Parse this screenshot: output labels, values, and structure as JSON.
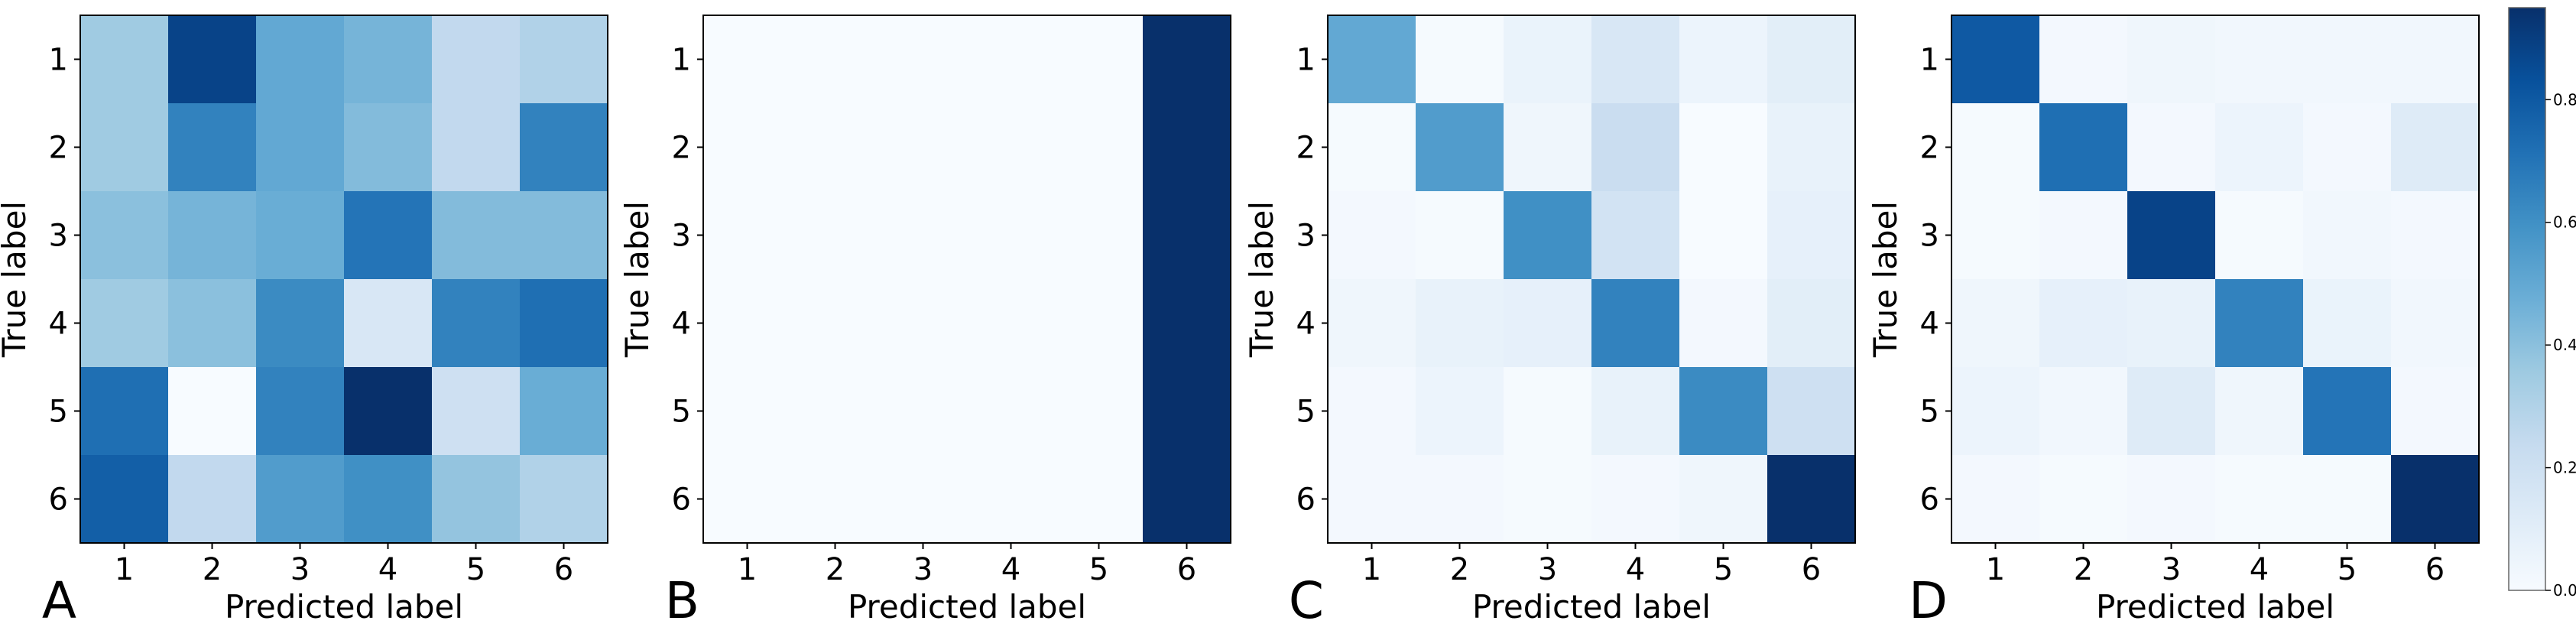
{
  "colormap": {
    "name": "Blues",
    "stops": [
      "#f7fbff",
      "#deebf7",
      "#c6dbef",
      "#9ecae1",
      "#6baed6",
      "#4292c6",
      "#2171b5",
      "#08519c",
      "#08306b"
    ]
  },
  "colorbar": {
    "range": [
      0.0,
      0.95
    ],
    "tick_values": [
      0.0,
      0.2,
      0.4,
      0.6,
      0.8
    ],
    "tick_labels": [
      "0.0",
      "0.2",
      "0.4",
      "0.6",
      "0.8"
    ]
  },
  "chart_data": [
    {
      "type": "heatmap",
      "panel_label": "A",
      "xlabel": "Predicted label",
      "ylabel": "True label",
      "x_categories": [
        "1",
        "2",
        "3",
        "4",
        "5",
        "6"
      ],
      "y_categories": [
        "1",
        "2",
        "3",
        "4",
        "5",
        "6"
      ],
      "values": [
        [
          0.35,
          0.88,
          0.5,
          0.45,
          0.25,
          0.3
        ],
        [
          0.35,
          0.65,
          0.5,
          0.42,
          0.25,
          0.65
        ],
        [
          0.4,
          0.45,
          0.48,
          0.7,
          0.42,
          0.42
        ],
        [
          0.35,
          0.4,
          0.62,
          0.15,
          0.65,
          0.72
        ],
        [
          0.72,
          0.0,
          0.65,
          0.95,
          0.2,
          0.48
        ],
        [
          0.78,
          0.25,
          0.55,
          0.6,
          0.38,
          0.3
        ]
      ]
    },
    {
      "type": "heatmap",
      "panel_label": "B",
      "xlabel": "Predicted label",
      "ylabel": "True label",
      "x_categories": [
        "1",
        "2",
        "3",
        "4",
        "5",
        "6"
      ],
      "y_categories": [
        "1",
        "2",
        "3",
        "4",
        "5",
        "6"
      ],
      "values": [
        [
          0.0,
          0.0,
          0.0,
          0.0,
          0.0,
          0.95
        ],
        [
          0.0,
          0.0,
          0.0,
          0.0,
          0.0,
          0.95
        ],
        [
          0.0,
          0.0,
          0.0,
          0.0,
          0.0,
          0.95
        ],
        [
          0.0,
          0.0,
          0.0,
          0.0,
          0.0,
          0.95
        ],
        [
          0.0,
          0.0,
          0.0,
          0.0,
          0.0,
          0.95
        ],
        [
          0.0,
          0.0,
          0.0,
          0.0,
          0.0,
          0.95
        ]
      ]
    },
    {
      "type": "heatmap",
      "panel_label": "C",
      "xlabel": "Predicted label",
      "ylabel": "True label",
      "x_categories": [
        "1",
        "2",
        "3",
        "4",
        "5",
        "6"
      ],
      "y_categories": [
        "1",
        "2",
        "3",
        "4",
        "5",
        "6"
      ],
      "values": [
        [
          0.5,
          0.01,
          0.06,
          0.15,
          0.05,
          0.1
        ],
        [
          0.01,
          0.55,
          0.04,
          0.22,
          0.0,
          0.07
        ],
        [
          0.02,
          0.01,
          0.6,
          0.18,
          0.0,
          0.08
        ],
        [
          0.04,
          0.07,
          0.08,
          0.65,
          0.02,
          0.1
        ],
        [
          0.02,
          0.05,
          0.01,
          0.07,
          0.62,
          0.2
        ],
        [
          0.02,
          0.02,
          0.01,
          0.02,
          0.04,
          0.95
        ]
      ]
    },
    {
      "type": "heatmap",
      "panel_label": "D",
      "xlabel": "Predicted label",
      "ylabel": "True label",
      "x_categories": [
        "1",
        "2",
        "3",
        "4",
        "5",
        "6"
      ],
      "y_categories": [
        "1",
        "2",
        "3",
        "4",
        "5",
        "6"
      ],
      "values": [
        [
          0.8,
          0.02,
          0.04,
          0.03,
          0.03,
          0.03
        ],
        [
          0.01,
          0.72,
          0.02,
          0.05,
          0.02,
          0.12
        ],
        [
          0.01,
          0.02,
          0.88,
          0.01,
          0.03,
          0.02
        ],
        [
          0.04,
          0.08,
          0.07,
          0.65,
          0.06,
          0.03
        ],
        [
          0.05,
          0.03,
          0.12,
          0.04,
          0.7,
          0.02
        ],
        [
          0.02,
          0.01,
          0.02,
          0.01,
          0.01,
          0.95
        ]
      ]
    }
  ]
}
